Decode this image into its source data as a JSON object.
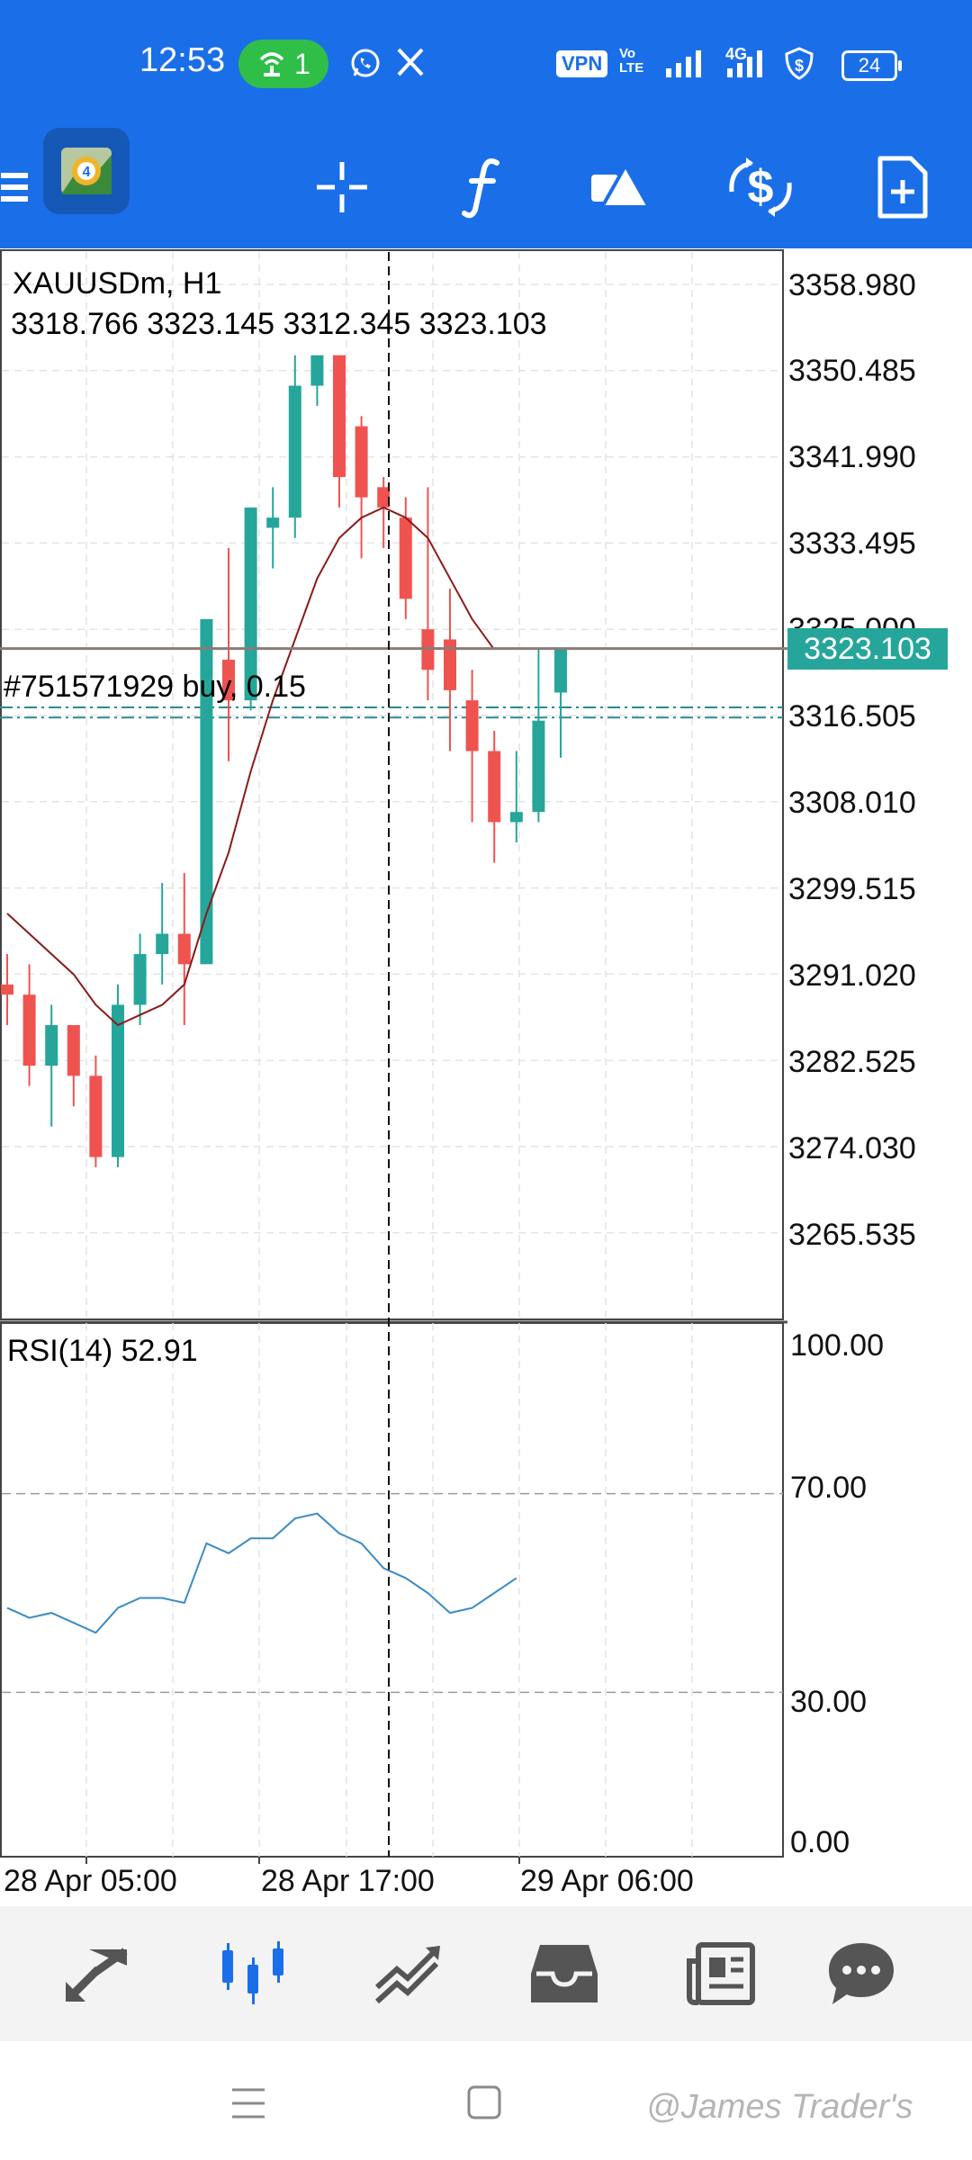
{
  "status_bar": {
    "time": "12:53",
    "hotspot_count": "1",
    "vpn": "VPN",
    "volte_top": "Vo",
    "volte_bottom": "LTE",
    "network": "4G",
    "battery": "24",
    "icons": [
      "hotspot-icon",
      "whatsapp-icon",
      "x-icon",
      "signal-icon",
      "shield-dollar-icon"
    ]
  },
  "toolbar": {
    "icons": [
      "menu-icon",
      "metatrader-logo",
      "crosshair-icon",
      "indicator-f-icon",
      "shapes-icon",
      "trade-dollar-icon",
      "new-order-icon"
    ]
  },
  "chart": {
    "symbol_line": "XAUUSDm, H1",
    "ohlc_line": "3318.766 3323.145 3312.345 3323.103",
    "position_line": "#751571929 buy, 0.15",
    "current_price": "3323.103",
    "price_axis": [
      "3358.980",
      "3350.485",
      "3341.990",
      "3333.495",
      "3325.000",
      "3316.505",
      "3308.010",
      "3299.515",
      "3291.020",
      "3282.525",
      "3274.030",
      "3265.535"
    ],
    "time_axis": [
      "28 Apr 05:00",
      "28 Apr 17:00",
      "29 Apr 06:00"
    ],
    "colors": {
      "bull": "#26a69a",
      "bear": "#ef5350",
      "ma": "#8b1a1a",
      "rsi": "#3b8bc2",
      "bid": "#8c7b74",
      "entry": "#2a8a95"
    }
  },
  "rsi": {
    "label": "RSI(14) 52.91",
    "axis": [
      "100.00",
      "70.00",
      "30.00",
      "0.00"
    ]
  },
  "bottom_nav": {
    "items": [
      "quotes-icon",
      "chart-icon",
      "trade-icon",
      "history-icon",
      "news-icon",
      "chat-icon"
    ],
    "active": "chart-icon",
    "active_color": "#1a6fe8"
  },
  "system_nav": {
    "items": [
      "menu-nav-icon",
      "home-nav-icon"
    ]
  },
  "watermark": "@James Trader's",
  "chart_data": {
    "type": "candlestick",
    "symbol": "XAUUSDm",
    "timeframe": "H1",
    "ylim": [
      3260,
      3362
    ],
    "candles": [
      {
        "o": 3290,
        "h": 3293,
        "l": 3286,
        "c": 3289
      },
      {
        "o": 3289,
        "h": 3292,
        "l": 3280,
        "c": 3282
      },
      {
        "o": 3282,
        "h": 3288,
        "l": 3276,
        "c": 3286
      },
      {
        "o": 3286,
        "h": 3286,
        "l": 3278,
        "c": 3281
      },
      {
        "o": 3281,
        "h": 3283,
        "l": 3272,
        "c": 3273
      },
      {
        "o": 3273,
        "h": 3290,
        "l": 3272,
        "c": 3288
      },
      {
        "o": 3288,
        "h": 3295,
        "l": 3286,
        "c": 3293
      },
      {
        "o": 3293,
        "h": 3300,
        "l": 3290,
        "c": 3295
      },
      {
        "o": 3295,
        "h": 3301,
        "l": 3286,
        "c": 3292
      },
      {
        "o": 3292,
        "h": 3326,
        "l": 3292,
        "c": 3326
      },
      {
        "o": 3322,
        "h": 3333,
        "l": 3312,
        "c": 3318
      },
      {
        "o": 3318,
        "h": 3337,
        "l": 3317,
        "c": 3337
      },
      {
        "o": 3335,
        "h": 3339,
        "l": 3331,
        "c": 3336
      },
      {
        "o": 3336,
        "h": 3352,
        "l": 3334,
        "c": 3349
      },
      {
        "o": 3349,
        "h": 3352,
        "l": 3347,
        "c": 3352
      },
      {
        "o": 3352,
        "h": 3352,
        "l": 3337,
        "c": 3340
      },
      {
        "o": 3345,
        "h": 3346,
        "l": 3332,
        "c": 3338
      },
      {
        "o": 3339,
        "h": 3340,
        "l": 3333,
        "c": 3337
      },
      {
        "o": 3336,
        "h": 3338,
        "l": 3326,
        "c": 3328
      },
      {
        "o": 3325,
        "h": 3339,
        "l": 3318,
        "c": 3321
      },
      {
        "o": 3324,
        "h": 3329,
        "l": 3313,
        "c": 3319
      },
      {
        "o": 3318,
        "h": 3321,
        "l": 3306,
        "c": 3313
      },
      {
        "o": 3313,
        "h": 3315,
        "l": 3302,
        "c": 3306
      },
      {
        "o": 3306,
        "h": 3313,
        "l": 3304,
        "c": 3307
      },
      {
        "o": 3307,
        "h": 3323,
        "l": 3306,
        "c": 3316
      },
      {
        "o": 3318.766,
        "h": 3323.145,
        "l": 3312.345,
        "c": 3323.103
      }
    ],
    "ma": [
      3297,
      3295,
      3293,
      3291,
      3288,
      3286,
      3287,
      3288,
      3290,
      3297,
      3303,
      3311,
      3318,
      3324,
      3330,
      3334,
      3336,
      3337,
      3336,
      3334,
      3330,
      3326,
      3323
    ],
    "rsi_values": [
      47,
      45,
      46,
      44,
      42,
      47,
      49,
      49,
      48,
      60,
      58,
      61,
      61,
      65,
      66,
      62,
      60,
      55,
      53,
      50,
      46,
      47,
      50,
      53
    ],
    "rsi_levels": [
      70,
      30
    ],
    "current_price": 3323.103,
    "entry_lines": [
      3317.3,
      3316.3
    ]
  }
}
